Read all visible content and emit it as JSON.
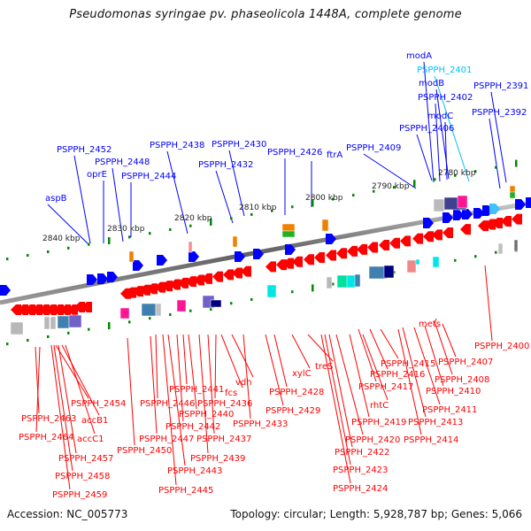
{
  "title": "Pseudomonas syringae pv. phaseolicola 1448A, complete genome",
  "footer": {
    "accession": "Accession: NC_005773",
    "summary": "Topology: circular; Length: 5,928,787 bp; Genes: 5,066"
  },
  "colors": {
    "forward_strand": "#0000ff",
    "reverse_strand": "#ff0000",
    "highlight_label": "#00c0ff",
    "backbone": "#707070",
    "tick": "#008800"
  },
  "scale_labels": [
    "2840 kbp",
    "2830 kbp",
    "2820 kbp",
    "2810 kbp",
    "2800 kbp",
    "2790 kbp",
    "2780 kbp"
  ],
  "forward_labels": [
    {
      "text": "aspB"
    },
    {
      "text": "PSPPH_2452"
    },
    {
      "text": "oprE"
    },
    {
      "text": "PSPPH_2448"
    },
    {
      "text": "PSPPH_2444"
    },
    {
      "text": "PSPPH_2438"
    },
    {
      "text": "PSPPH_2432"
    },
    {
      "text": "PSPPH_2430"
    },
    {
      "text": "PSPPH_2426"
    },
    {
      "text": "ftrA"
    },
    {
      "text": "PSPPH_2409"
    },
    {
      "text": "PSPPH_2406"
    },
    {
      "text": "modC"
    },
    {
      "text": "PSPPH_2402"
    },
    {
      "text": "modB"
    },
    {
      "text": "PSPPH_2401",
      "highlight": true
    },
    {
      "text": "modA"
    },
    {
      "text": "PSPPH_2392"
    },
    {
      "text": "PSPPH_2391"
    }
  ],
  "reverse_labels": [
    {
      "text": "PSPPH_2463"
    },
    {
      "text": "PSPPH_2464"
    },
    {
      "text": "PSPPH_2454"
    },
    {
      "text": "accB1"
    },
    {
      "text": "accC1"
    },
    {
      "text": "PSPPH_2457"
    },
    {
      "text": "PSPPH_2458"
    },
    {
      "text": "PSPPH_2459"
    },
    {
      "text": "PSPPH_2450"
    },
    {
      "text": "PSPPH_2447"
    },
    {
      "text": "PSPPH_2446"
    },
    {
      "text": "PSPPH_2445"
    },
    {
      "text": "PSPPH_2443"
    },
    {
      "text": "PSPPH_2442"
    },
    {
      "text": "PSPPH_2441"
    },
    {
      "text": "PSPPH_2440"
    },
    {
      "text": "PSPPH_2439"
    },
    {
      "text": "PSPPH_2437"
    },
    {
      "text": "PSPPH_2436"
    },
    {
      "text": "fcs"
    },
    {
      "text": "vdh"
    },
    {
      "text": "PSPPH_2433"
    },
    {
      "text": "PSPPH_2429"
    },
    {
      "text": "PSPPH_2428"
    },
    {
      "text": "xylC"
    },
    {
      "text": "treS"
    },
    {
      "text": "PSPPH_2424"
    },
    {
      "text": "PSPPH_2423"
    },
    {
      "text": "PSPPH_2422"
    },
    {
      "text": "PSPPH_2420"
    },
    {
      "text": "PSPPH_2419"
    },
    {
      "text": "rhtC"
    },
    {
      "text": "PSPPH_2417"
    },
    {
      "text": "PSPPH_2416"
    },
    {
      "text": "PSPPH_2415"
    },
    {
      "text": "PSPPH_2414"
    },
    {
      "text": "PSPPH_2413"
    },
    {
      "text": "PSPPH_2411"
    },
    {
      "text": "PSPPH_2410"
    },
    {
      "text": "mets"
    },
    {
      "text": "PSPPH_2408"
    },
    {
      "text": "PSPPH_2407"
    },
    {
      "text": "PSPPH_2400"
    }
  ]
}
